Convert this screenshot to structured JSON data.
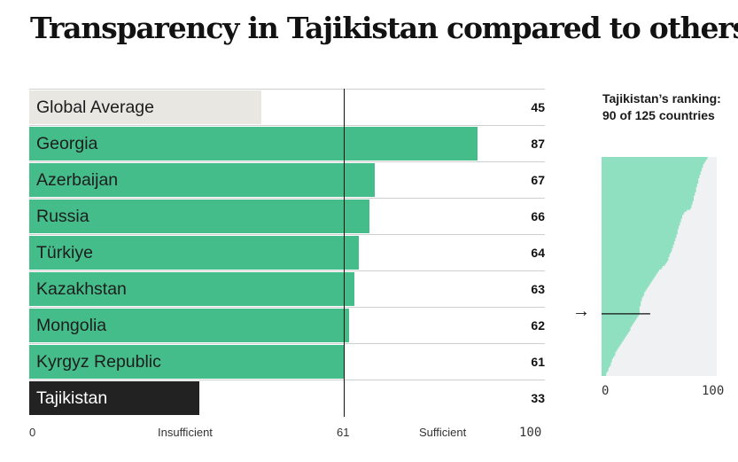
{
  "title": "Transparency in Tajikistan compared to others",
  "chart_data": [
    {
      "type": "bar",
      "orientation": "horizontal",
      "categories": [
        "Global Average",
        "Georgia",
        "Azerbaijan",
        "Russia",
        "Türkiye",
        "Kazakhstan",
        "Mongolia",
        "Kyrgyz Republic",
        "Tajikistan"
      ],
      "values": [
        45,
        87,
        67,
        66,
        64,
        63,
        62,
        61,
        33
      ],
      "highlight": "Tajikistan",
      "xlim": [
        0,
        100
      ],
      "threshold": 61,
      "x_ticks": [
        "0",
        "61",
        "100"
      ],
      "x_zone_labels": [
        "Insufficient",
        "Sufficient"
      ],
      "colors": {
        "global": "#e8e7e2",
        "country": "#45bd8a",
        "highlight": "#222222"
      }
    },
    {
      "type": "area",
      "title": "Tajikistan’s ranking: 90 of 125 countries",
      "rank": 90,
      "total": 125,
      "marker_value": 33,
      "xlim": [
        0,
        100
      ],
      "x_ticks": [
        "0",
        "100"
      ],
      "sorted_scores": [
        92,
        91,
        90,
        89,
        88,
        88,
        87,
        87,
        86,
        86,
        85,
        85,
        84,
        84,
        84,
        83,
        83,
        82,
        82,
        82,
        81,
        81,
        80,
        80,
        80,
        79,
        79,
        78,
        78,
        77,
        74,
        72,
        71,
        70,
        70,
        69,
        69,
        68,
        68,
        67,
        67,
        66,
        66,
        66,
        65,
        65,
        64,
        64,
        63,
        63,
        62,
        62,
        61,
        61,
        60,
        59,
        59,
        58,
        58,
        57,
        56,
        55,
        53,
        52,
        50,
        49,
        48,
        47,
        46,
        45,
        44,
        43,
        42,
        41,
        40,
        39,
        38,
        37,
        37,
        36,
        35,
        35,
        34,
        34,
        34,
        33,
        33,
        33,
        33,
        33,
        32,
        31,
        30,
        29,
        28,
        27,
        26,
        25,
        25,
        24,
        23,
        22,
        21,
        20,
        19,
        18,
        17,
        16,
        15,
        14,
        13,
        12,
        12,
        11,
        10,
        9,
        9,
        8,
        8,
        7,
        6,
        6,
        5,
        4,
        4
      ],
      "colors": {
        "fill": "#8fe0c0",
        "background": "#eff1f3"
      }
    }
  ]
}
